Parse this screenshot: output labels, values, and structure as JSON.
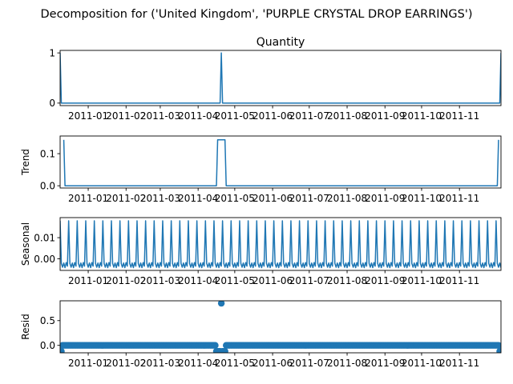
{
  "suptitle": "Decomposition for ('United Kingdom', 'PURPLE CRYSTAL DROP EARRINGS')",
  "x_tick_labels": [
    "2011-01",
    "2011-02",
    "2011-03",
    "2011-04",
    "2011-05",
    "2011-06",
    "2011-07",
    "2011-08",
    "2011-09",
    "2011-10",
    "2011-11"
  ],
  "colors": {
    "series": "#1f77b4",
    "axis": "#000000",
    "background": "#ffffff"
  },
  "chart_data": [
    {
      "type": "line",
      "title": "Quantity",
      "ylabel": "",
      "x_range_days": [
        0,
        361
      ],
      "ylim": [
        -0.05,
        1.05
      ],
      "yticks": [
        0,
        1
      ],
      "ytick_labels": [
        "0",
        "1"
      ],
      "points": [
        [
          0,
          1
        ],
        [
          1,
          0
        ],
        [
          131,
          0
        ],
        [
          132,
          1
        ],
        [
          133,
          0
        ],
        [
          360,
          0
        ],
        [
          361,
          1
        ]
      ]
    },
    {
      "type": "line",
      "title": "",
      "ylabel": "Trend",
      "x_range_days": [
        0,
        361
      ],
      "ylim": [
        -0.007,
        0.155
      ],
      "yticks": [
        0.0,
        0.1
      ],
      "ytick_labels": [
        "0.0",
        "0.1"
      ],
      "points": [
        [
          3,
          0.143
        ],
        [
          4,
          0
        ],
        [
          128,
          0
        ],
        [
          129,
          0.143
        ],
        [
          135,
          0.143
        ],
        [
          136,
          0
        ],
        [
          358,
          0
        ],
        [
          359,
          0.143
        ]
      ]
    },
    {
      "type": "line",
      "title": "",
      "ylabel": "Seasonal",
      "x_range_days": [
        0,
        361
      ],
      "ylim": [
        -0.0055,
        0.0195
      ],
      "yticks": [
        0.0,
        0.01
      ],
      "ytick_labels": [
        "0.00",
        "0.01"
      ],
      "period_days": 7,
      "pattern": [
        0.018,
        -0.0022,
        -0.004,
        -0.002,
        -0.0042,
        -0.0018,
        -0.0035
      ]
    },
    {
      "type": "scatter",
      "title": "",
      "ylabel": "Resid",
      "x_range_days": [
        0,
        361
      ],
      "ylim": [
        -0.15,
        0.9
      ],
      "yticks": [
        0.0,
        0.5
      ],
      "ytick_labels": [
        "0.0",
        "0.5"
      ],
      "baseline": 0.0,
      "points": [
        [
          0,
          -0.12
        ],
        [
          1,
          -0.12
        ],
        [
          128,
          -0.12
        ],
        [
          129,
          -0.12
        ],
        [
          130,
          -0.12
        ],
        [
          131,
          -0.12
        ],
        [
          132,
          0.85
        ],
        [
          133,
          -0.12
        ],
        [
          134,
          -0.12
        ],
        [
          135,
          -0.12
        ],
        [
          360,
          -0.12
        ],
        [
          361,
          -0.12
        ]
      ]
    }
  ]
}
